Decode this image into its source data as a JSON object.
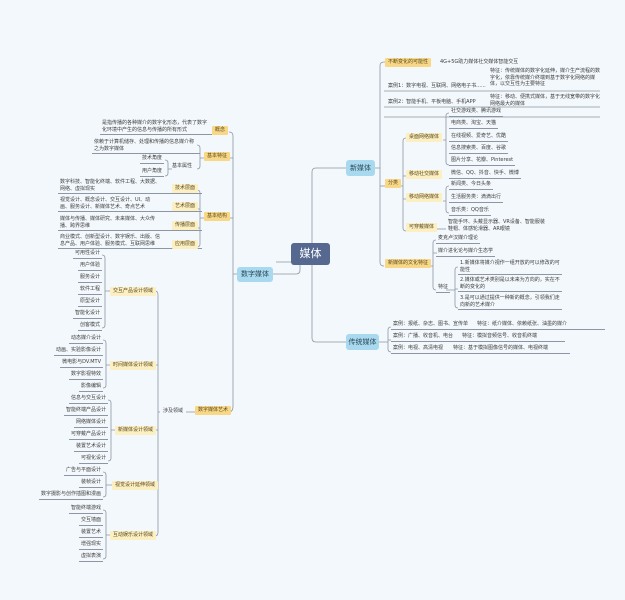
{
  "center": "媒体",
  "colors": {
    "root": "#56688f",
    "main": "#a9d9ee",
    "label": "#f8d887",
    "label_light": "#fcefc2",
    "line": "#8d96a2",
    "background": "#f3f8fc"
  },
  "new_media": {
    "label": "新媒体",
    "possibility": {
      "label": "不断变化的可能性",
      "item": "4G+5G助力媒体社交媒体智能交互"
    },
    "case1": {
      "label": "案例1：数字电视、互联网、网络电子书......",
      "feature": "特征：传统媒体的数字化延伸，媒介生产流程的数字化，依靠传统媒介终端到基于数字化网络的媒体，以交互性为主要特征"
    },
    "case2": {
      "label": "案例2：智能手机、平板电脑、手机APP",
      "feature": "特征：移动、便携式媒体，基于无线宽带的数字化网络最大的媒体"
    },
    "classification": {
      "label": "分类",
      "desktop": {
        "label": "桌面网络媒体",
        "items": [
          "社交游戏类、腾讯游戏",
          "电商类、淘宝、天猫",
          "在线视频、爱奇艺、优酷",
          "信息搜索类、百度、谷歌",
          "图片分享、花瓣、Pinterest"
        ]
      },
      "mobile_social": {
        "label": "移动社交媒体",
        "items": [
          "微信、QQ、抖音、快手、微博"
        ]
      },
      "mobile_network": {
        "label": "移动网络媒体",
        "items": [
          "新闻类、今日头条",
          "生活服务类：滴滴出行",
          "音乐类：QQ音乐"
        ]
      },
      "wearable": {
        "label": "可穿戴媒体",
        "items": [
          "智能手环、头戴显示器、VR设备、智能服装鞋帽、体感轮滑器、AR眼镜"
        ]
      }
    },
    "culture": {
      "label": "新媒体的文化特征",
      "items": [
        "麦克卢汉媒介理论",
        "媒介进化论与媒介生态学"
      ],
      "feature_label": "特征",
      "features": [
        "1.新媒体将媒介视作一组开放的可以修改的可能性",
        "2.媒体或艺术类别是以未来为方向的，实在不断的变化的",
        "3.是可以通过提供一种新的概念，引领我们走向新的艺术媒介"
      ]
    }
  },
  "traditional_media": {
    "label": "传统媒体",
    "rows": [
      {
        "case": "案例：报纸、杂志、图书、宣传单",
        "feature": "特征：纸介媒体、依赖纸张、油墨的媒介"
      },
      {
        "case": "案例：广播、收音机、电台",
        "feature": "特征：模拟音频信号、收音机终端"
      },
      {
        "case": "案例：电视、高清电视",
        "feature": "特征：基于模拟图像信号的媒体、电视终端"
      }
    ]
  },
  "digital_media": {
    "label": "数字媒体",
    "concept": {
      "label": "概念",
      "text": "是指传播的各种媒介的数字化形态，代表了数字化环境中产生的信息与传播的所有形式"
    },
    "basic_feature": {
      "label": "基本特征",
      "text": "依赖于计算机储存、处理和传播的信息媒介称之为数字媒体",
      "attr_label": "基本属性",
      "attrs": [
        "技术角度",
        "用户角度"
      ]
    },
    "basic_structure": {
      "label": "基本结构",
      "layers": [
        {
          "label": "技术层面",
          "text": "数字科技、智能化终端、软件工程、大数据、网络、虚拟现实"
        },
        {
          "label": "艺术层面",
          "text": "视觉设计、概念设计、交互设计、UI、动画、服务设计、新媒体艺术、奇点艺术"
        },
        {
          "label": "传播层面",
          "text": "媒体与传播、媒体研究、未来媒体、大众传播、跨界思维"
        },
        {
          "label": "应用层面",
          "text": "商业模式、创新型设计、数字娱乐、出版、信息产品、用户体验、服务模式、互联网思维"
        }
      ]
    },
    "art": {
      "label": "数字媒体艺术",
      "scope_label": "涉及领域",
      "fields": [
        {
          "label": "交互产品设计领域",
          "items": [
            "可用性设计",
            "用户体验",
            "服务设计",
            "软件工程",
            "原型设计",
            "智能化设计",
            "创客模式"
          ]
        },
        {
          "label": "时间媒体设计领域",
          "items": [
            "动态媒介设计",
            "动画、实验影像设计",
            "微电影与DV.MTV",
            "数字影视特效",
            "影像编辑"
          ]
        },
        {
          "label": "新媒体设计领域",
          "items": [
            "信息与交互设计",
            "智能终端产品设计",
            "网络媒体设计",
            "可穿戴产品设计",
            "装置艺术设计",
            "可视化设计"
          ]
        },
        {
          "label": "视觉设计延伸领域",
          "items": [
            "广告与平面设计",
            "装帧设计",
            "数字摄影与创作插图和漫画"
          ]
        },
        {
          "label": "互动娱乐设计领域",
          "items": [
            "智能终端游戏",
            "交互墙面",
            "装置艺术",
            "增强现实",
            "虚拟表演"
          ]
        }
      ]
    }
  }
}
